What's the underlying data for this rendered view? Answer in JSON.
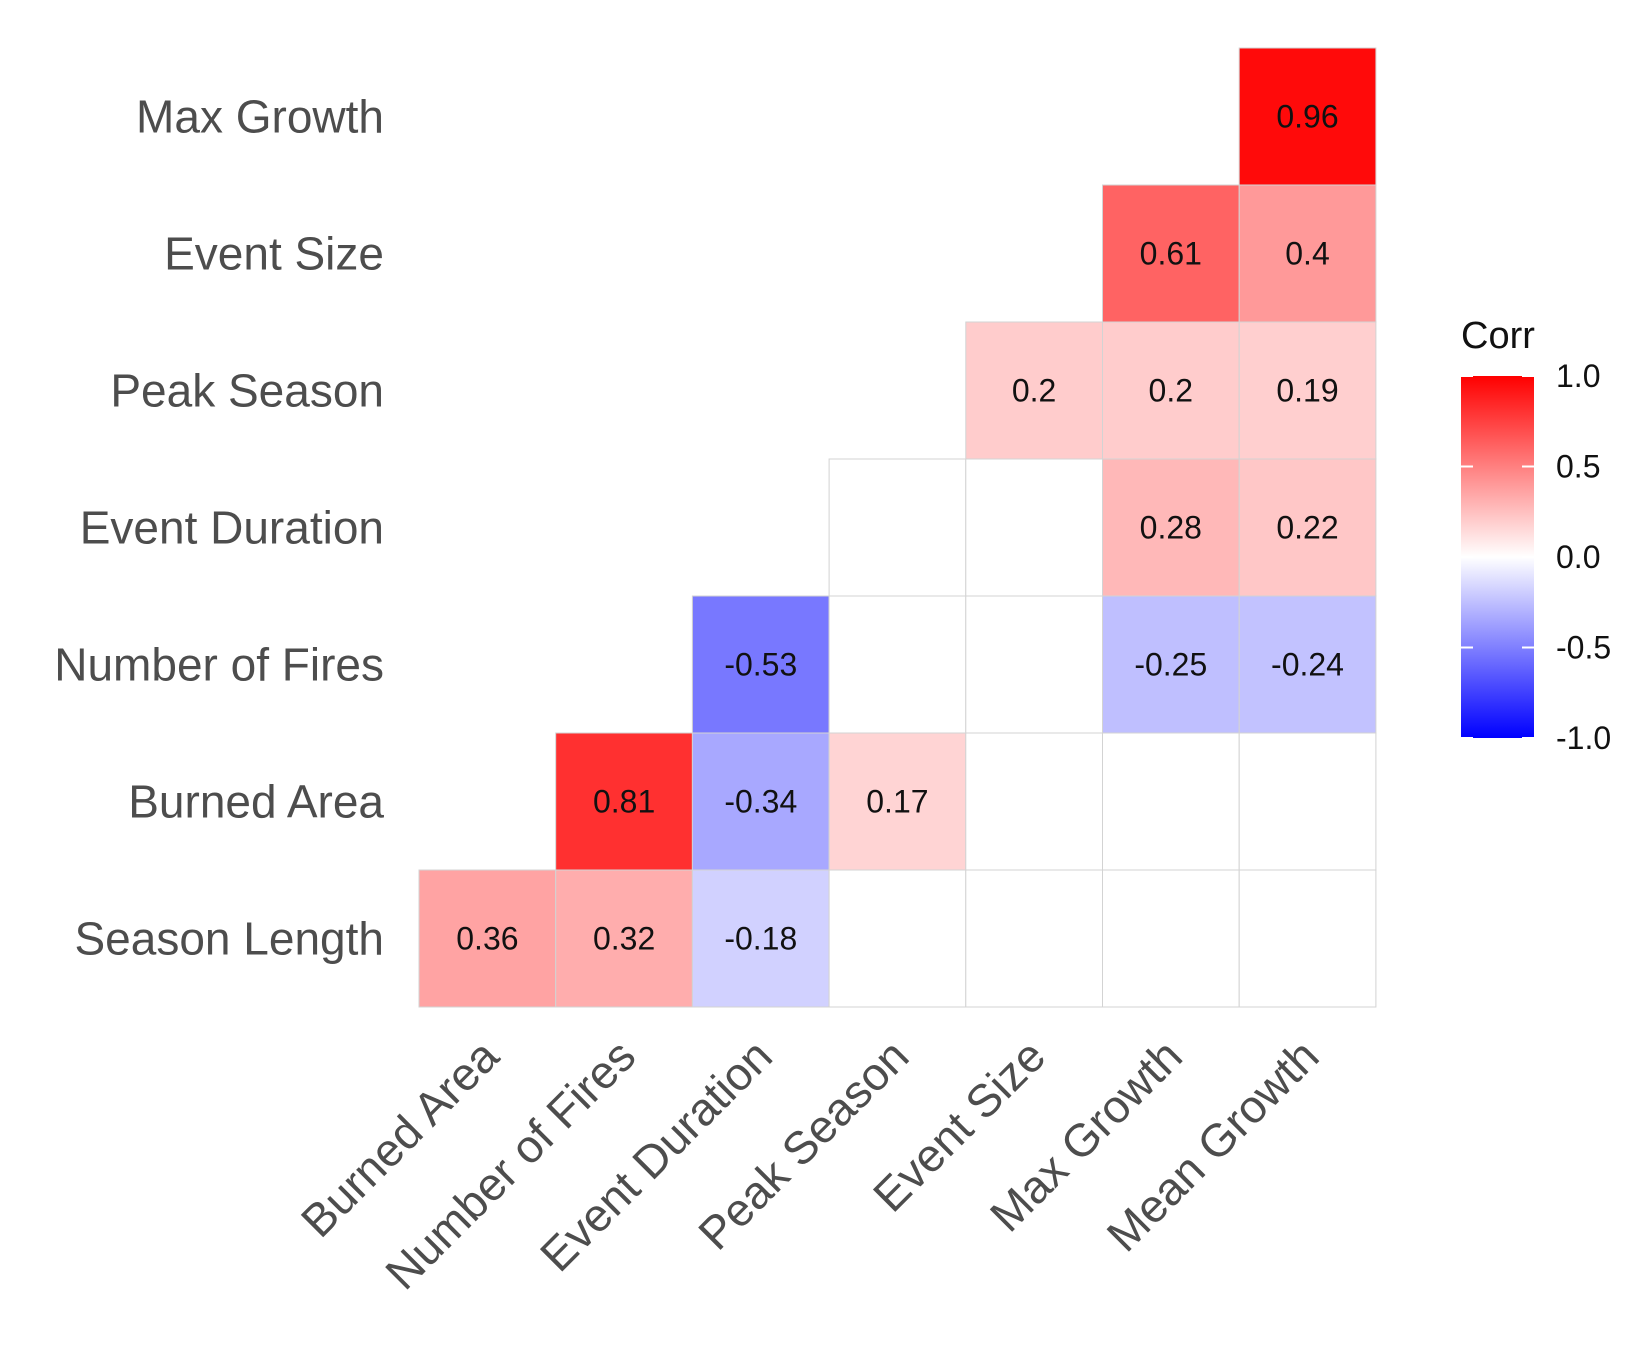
{
  "chart_data": {
    "type": "heatmap",
    "title": "",
    "xlabel": "",
    "ylabel": "",
    "x_categories": [
      "Burned Area",
      "Number of Fires",
      "Event Duration",
      "Peak Season",
      "Event Size",
      "Max Growth",
      "Mean Growth"
    ],
    "y_categories": [
      "Season Length",
      "Burned Area",
      "Number of Fires",
      "Event Duration",
      "Peak Season",
      "Event Size",
      "Max Growth"
    ],
    "cells": [
      {
        "row": "Season Length",
        "col": "Burned Area",
        "value": 0.36,
        "label": "0.36"
      },
      {
        "row": "Season Length",
        "col": "Number of Fires",
        "value": 0.32,
        "label": "0.32"
      },
      {
        "row": "Season Length",
        "col": "Event Duration",
        "value": -0.18,
        "label": "-0.18"
      },
      {
        "row": "Season Length",
        "col": "Peak Season",
        "value": null,
        "label": ""
      },
      {
        "row": "Season Length",
        "col": "Event Size",
        "value": null,
        "label": ""
      },
      {
        "row": "Season Length",
        "col": "Max Growth",
        "value": null,
        "label": ""
      },
      {
        "row": "Season Length",
        "col": "Mean Growth",
        "value": null,
        "label": ""
      },
      {
        "row": "Burned Area",
        "col": "Number of Fires",
        "value": 0.81,
        "label": "0.81"
      },
      {
        "row": "Burned Area",
        "col": "Event Duration",
        "value": -0.34,
        "label": "-0.34"
      },
      {
        "row": "Burned Area",
        "col": "Peak Season",
        "value": 0.17,
        "label": "0.17"
      },
      {
        "row": "Burned Area",
        "col": "Event Size",
        "value": null,
        "label": ""
      },
      {
        "row": "Burned Area",
        "col": "Max Growth",
        "value": null,
        "label": ""
      },
      {
        "row": "Burned Area",
        "col": "Mean Growth",
        "value": null,
        "label": ""
      },
      {
        "row": "Number of Fires",
        "col": "Event Duration",
        "value": -0.53,
        "label": "-0.53"
      },
      {
        "row": "Number of Fires",
        "col": "Peak Season",
        "value": null,
        "label": ""
      },
      {
        "row": "Number of Fires",
        "col": "Event Size",
        "value": null,
        "label": ""
      },
      {
        "row": "Number of Fires",
        "col": "Max Growth",
        "value": -0.25,
        "label": "-0.25"
      },
      {
        "row": "Number of Fires",
        "col": "Mean Growth",
        "value": -0.24,
        "label": "-0.24"
      },
      {
        "row": "Event Duration",
        "col": "Peak Season",
        "value": null,
        "label": ""
      },
      {
        "row": "Event Duration",
        "col": "Event Size",
        "value": null,
        "label": ""
      },
      {
        "row": "Event Duration",
        "col": "Max Growth",
        "value": 0.28,
        "label": "0.28"
      },
      {
        "row": "Event Duration",
        "col": "Mean Growth",
        "value": 0.22,
        "label": "0.22"
      },
      {
        "row": "Peak Season",
        "col": "Event Size",
        "value": 0.2,
        "label": "0.2"
      },
      {
        "row": "Peak Season",
        "col": "Max Growth",
        "value": 0.2,
        "label": "0.2"
      },
      {
        "row": "Peak Season",
        "col": "Mean Growth",
        "value": 0.19,
        "label": "0.19"
      },
      {
        "row": "Event Size",
        "col": "Max Growth",
        "value": 0.61,
        "label": "0.61"
      },
      {
        "row": "Event Size",
        "col": "Mean Growth",
        "value": 0.4,
        "label": "0.4"
      },
      {
        "row": "Max Growth",
        "col": "Mean Growth",
        "value": 0.96,
        "label": "0.96"
      }
    ],
    "color_scale": {
      "low": "#0000FF",
      "mid": "#FFFFFF",
      "high": "#FF0000",
      "range": [
        -1.0,
        1.0
      ]
    },
    "legend": {
      "title": "Corr",
      "ticks": [
        "1.0",
        "0.5",
        "0.0",
        "-0.5",
        "-1.0"
      ],
      "tick_values": [
        1.0,
        0.5,
        0.0,
        -0.5,
        -1.0
      ],
      "placement": "right"
    },
    "grid": false
  }
}
